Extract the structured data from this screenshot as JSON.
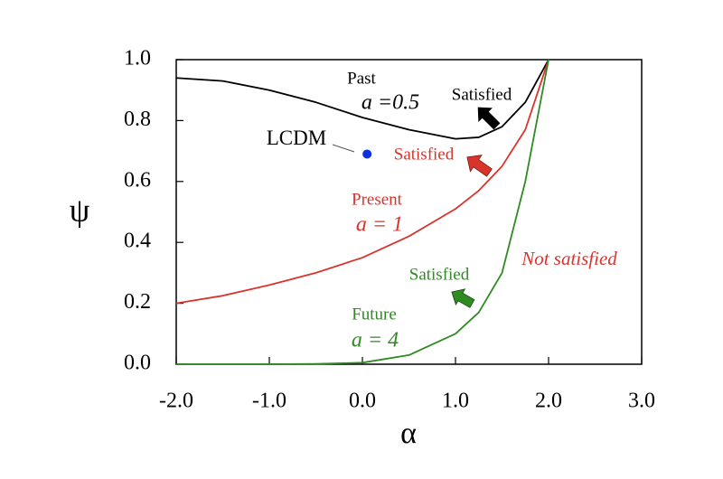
{
  "chart_data": {
    "type": "line",
    "xlabel": "α",
    "ylabel": "ψ",
    "x": [
      -2,
      -1.5,
      -1,
      -0.5,
      0,
      0.5,
      1,
      1.25,
      1.5,
      1.75,
      2
    ],
    "series": [
      {
        "name": "Past",
        "color": "#000000",
        "values": [
          0.94,
          0.93,
          0.9,
          0.86,
          0.81,
          0.77,
          0.74,
          0.745,
          0.78,
          0.86,
          1.0
        ]
      },
      {
        "name": "Present",
        "color": "#d8342c",
        "values": [
          0.2,
          0.225,
          0.26,
          0.3,
          0.35,
          0.42,
          0.51,
          0.57,
          0.65,
          0.77,
          1.0
        ]
      },
      {
        "name": "Future",
        "color": "#2f8a22",
        "values": [
          0,
          0,
          0,
          0.001,
          0.005,
          0.03,
          0.1,
          0.17,
          0.3,
          0.6,
          1.0
        ]
      }
    ],
    "points": [
      {
        "label": "LCDM",
        "x": 0.05,
        "y": 0.69,
        "color": "#1030e0"
      }
    ],
    "annotations": [
      "a =0.5",
      "Satisfied",
      "Satisfied",
      "a = 1",
      "Not satisfied",
      "Satisfied",
      "a = 4"
    ],
    "xlim": [
      -2,
      3
    ],
    "ylim": [
      0,
      1
    ],
    "xticks": [
      {
        "value": -2,
        "label": "-2.0"
      },
      {
        "value": -1,
        "label": "-1.0"
      },
      {
        "value": 0,
        "label": "0.0"
      },
      {
        "value": 1,
        "label": "1.0"
      },
      {
        "value": 2,
        "label": "2.0"
      },
      {
        "value": 3,
        "label": "3.0"
      }
    ],
    "yticks": [
      {
        "value": 0,
        "label": "0.0"
      },
      {
        "value": 0.2,
        "label": "0.2"
      },
      {
        "value": 0.4,
        "label": "0.4"
      },
      {
        "value": 0.6,
        "label": "0.6"
      },
      {
        "value": 0.8,
        "label": "0.8"
      },
      {
        "value": 1,
        "label": "1.0"
      }
    ]
  }
}
